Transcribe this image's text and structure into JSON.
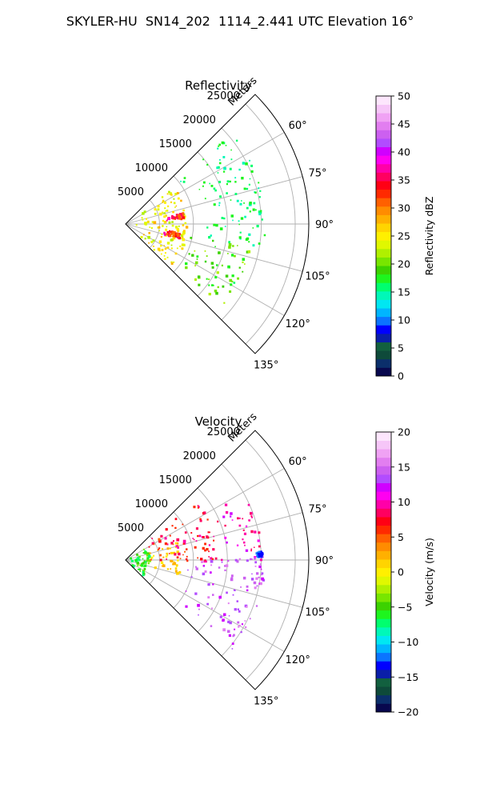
{
  "figure": {
    "suptitle": "SKYLER-HU  SN14_202  1114_2.441 UTC Elevation 16°"
  },
  "chart_data": [
    {
      "type": "polar-sector",
      "title": "Reflectivity",
      "radial_label": "Meters",
      "radial_ticks": [
        5000,
        10000,
        15000,
        20000,
        25000
      ],
      "radial_tick_labels": [
        "5000",
        "10000",
        "15000",
        "20000",
        "25000"
      ],
      "rlim": [
        0,
        27000
      ],
      "theta_range_deg": [
        45,
        135
      ],
      "angle_ticks_deg": [
        60,
        75,
        90,
        105,
        120,
        135
      ],
      "angle_tick_labels": [
        "60°",
        "75°",
        "90°",
        "105°",
        "120°",
        "135°"
      ],
      "grid": true,
      "colorbar": {
        "label": "Reflectivity dBZ",
        "range": [
          0,
          50
        ],
        "ticks": [
          0,
          5,
          10,
          15,
          20,
          25,
          30,
          35,
          40,
          45,
          50
        ],
        "tick_labels": [
          "0",
          "5",
          "10",
          "15",
          "20",
          "25",
          "30",
          "35",
          "40",
          "45",
          "50"
        ],
        "colors": [
          "#08084e",
          "#0b2f6b",
          "#0e4a3a",
          "#12603f",
          "#0a1ea8",
          "#0000ff",
          "#0b74ff",
          "#00b5ff",
          "#00e7f2",
          "#00f8b8",
          "#00ff6e",
          "#1ef51e",
          "#3cd200",
          "#78e600",
          "#b0f000",
          "#e0f800",
          "#fff000",
          "#ffd400",
          "#ffb000",
          "#ff8c00",
          "#ff6000",
          "#ff2a00",
          "#ff0014",
          "#ff0060",
          "#ff00a8",
          "#ff00f0",
          "#d000ff",
          "#b24cff",
          "#cc60f0",
          "#e27ef0",
          "#f0a2f4",
          "#f6c6f8",
          "#fde6fd"
        ]
      },
      "echo_regions": [
        {
          "value_range": [
            14,
            18
          ],
          "az_deg": [
            48,
            100
          ],
          "range_m": [
            10000,
            20500
          ],
          "note": "cyan/green outer echoes"
        },
        {
          "value_range": [
            16,
            22
          ],
          "az_deg": [
            100,
            130
          ],
          "range_m": [
            8000,
            18500
          ],
          "note": "green southern lobe"
        },
        {
          "value_range": [
            22,
            28
          ],
          "az_deg": [
            50,
            132
          ],
          "range_m": [
            1000,
            9000
          ],
          "note": "yellow-green near core"
        },
        {
          "value_range": [
            30,
            38
          ],
          "az_deg": [
            78,
            84
          ],
          "range_m": [
            6000,
            8500
          ],
          "note": "orange/red cell"
        },
        {
          "value_range": [
            30,
            38
          ],
          "az_deg": [
            98,
            104
          ],
          "range_m": [
            5500,
            8000
          ],
          "note": "orange/red cell"
        }
      ]
    },
    {
      "type": "polar-sector",
      "title": "Velocity",
      "radial_label": "Meters",
      "radial_ticks": [
        5000,
        10000,
        15000,
        20000,
        25000
      ],
      "radial_tick_labels": [
        "5000",
        "10000",
        "15000",
        "20000",
        "25000"
      ],
      "rlim": [
        0,
        27000
      ],
      "theta_range_deg": [
        45,
        135
      ],
      "angle_ticks_deg": [
        60,
        75,
        90,
        105,
        120,
        135
      ],
      "angle_tick_labels": [
        "60°",
        "75°",
        "90°",
        "105°",
        "120°",
        "135°"
      ],
      "grid": true,
      "colorbar": {
        "label": "Velocity (m/s)",
        "range": [
          -20,
          20
        ],
        "ticks": [
          -20,
          -15,
          -10,
          -5,
          0,
          5,
          10,
          15,
          20
        ],
        "tick_labels": [
          "−20",
          "−15",
          "−10",
          "−5",
          "0",
          "5",
          "10",
          "15",
          "20"
        ],
        "colors": [
          "#08084e",
          "#0b2f6b",
          "#0e4a3a",
          "#12603f",
          "#0a1ea8",
          "#0000ff",
          "#0b74ff",
          "#00b5ff",
          "#00e7f2",
          "#00f8b8",
          "#00ff6e",
          "#1ef51e",
          "#3cd200",
          "#78e600",
          "#b0f000",
          "#e0f800",
          "#fff000",
          "#ffd400",
          "#ffb000",
          "#ff8c00",
          "#ff6000",
          "#ff2a00",
          "#ff0014",
          "#ff0060",
          "#ff00a8",
          "#ff00f0",
          "#d000ff",
          "#b24cff",
          "#cc60f0",
          "#e27ef0",
          "#f0a2f4",
          "#f6c6f8",
          "#fde6fd"
        ]
      },
      "echo_regions": [
        {
          "value_range": [
            -8,
            -3
          ],
          "az_deg": [
            50,
            132
          ],
          "range_m": [
            500,
            3500
          ],
          "note": "green/lime near radar"
        },
        {
          "value_range": [
            0,
            3
          ],
          "az_deg": [
            70,
            105
          ],
          "range_m": [
            3500,
            8000
          ],
          "note": "yellow band"
        },
        {
          "value_range": [
            5,
            10
          ],
          "az_deg": [
            48,
            92
          ],
          "range_m": [
            3500,
            13500
          ],
          "note": "orange/red north"
        },
        {
          "value_range": [
            8,
            12
          ],
          "az_deg": [
            60,
            90
          ],
          "range_m": [
            13000,
            20000
          ],
          "note": "red outer north"
        },
        {
          "value_range": [
            12,
            16
          ],
          "az_deg": [
            88,
            130
          ],
          "range_m": [
            8000,
            20500
          ],
          "note": "magenta/purple south"
        },
        {
          "value_range": [
            -13,
            -12
          ],
          "az_deg": [
            86,
            88
          ],
          "range_m": [
            19000,
            20000
          ],
          "note": "small blue patch"
        }
      ]
    }
  ]
}
